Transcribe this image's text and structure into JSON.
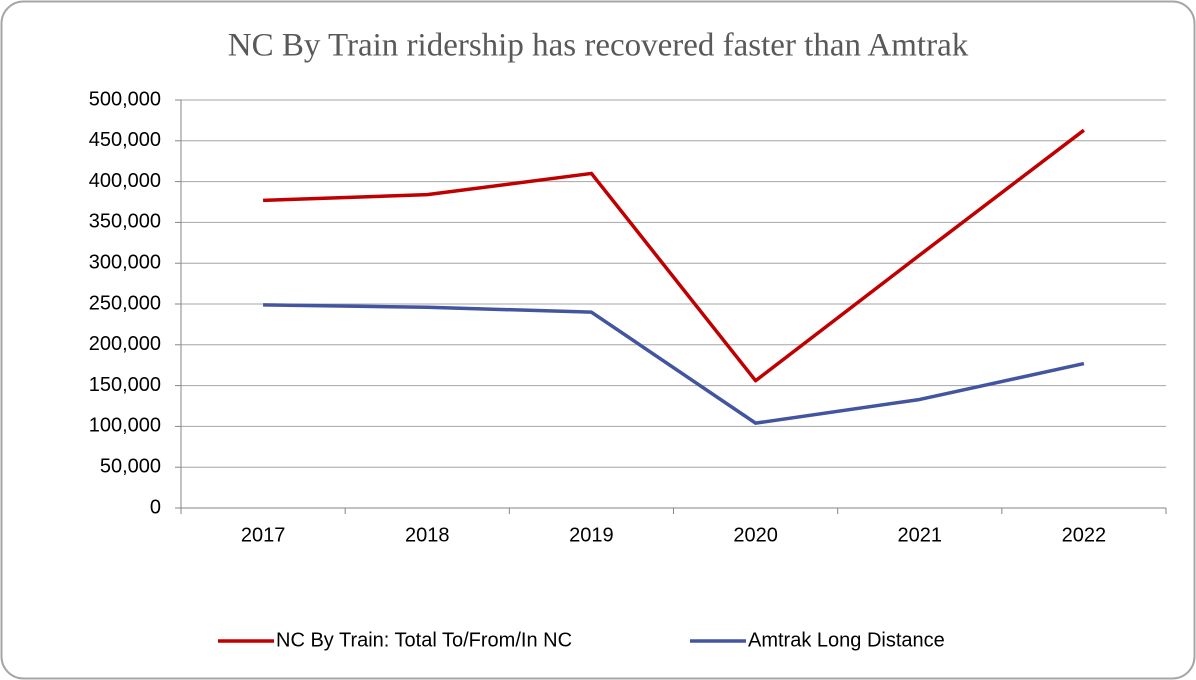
{
  "chart_data": {
    "type": "line",
    "title": "NC By Train ridership has recovered faster than Amtrak",
    "categories": [
      "2017",
      "2018",
      "2019",
      "2020",
      "2021",
      "2022"
    ],
    "series": [
      {
        "name": "NC By Train: Total To/From/In NC",
        "color": "#c00000",
        "values": [
          377000,
          384000,
          410000,
          156000,
          310000,
          463000
        ]
      },
      {
        "name": "Amtrak Long Distance",
        "color": "#4355a0",
        "values": [
          249000,
          246000,
          240000,
          104000,
          133000,
          177000
        ]
      }
    ],
    "ylim": [
      0,
      500000
    ],
    "yticks": [
      0,
      {
        "value": 50000,
        "label": "50,000"
      },
      {
        "value": 100000,
        "label": "100,000"
      },
      {
        "value": 150000,
        "label": "150,000"
      },
      {
        "value": 200000,
        "label": "200,000"
      },
      {
        "value": 250000,
        "label": "250,000"
      },
      {
        "value": 300000,
        "label": "300,000"
      },
      {
        "value": 350000,
        "label": "350,000"
      },
      {
        "value": 400000,
        "label": "400,000"
      },
      {
        "value": 450000,
        "label": "450,000"
      },
      {
        "value": 500000,
        "label": "500,000"
      }
    ],
    "grid": true,
    "legend": "bottom"
  }
}
